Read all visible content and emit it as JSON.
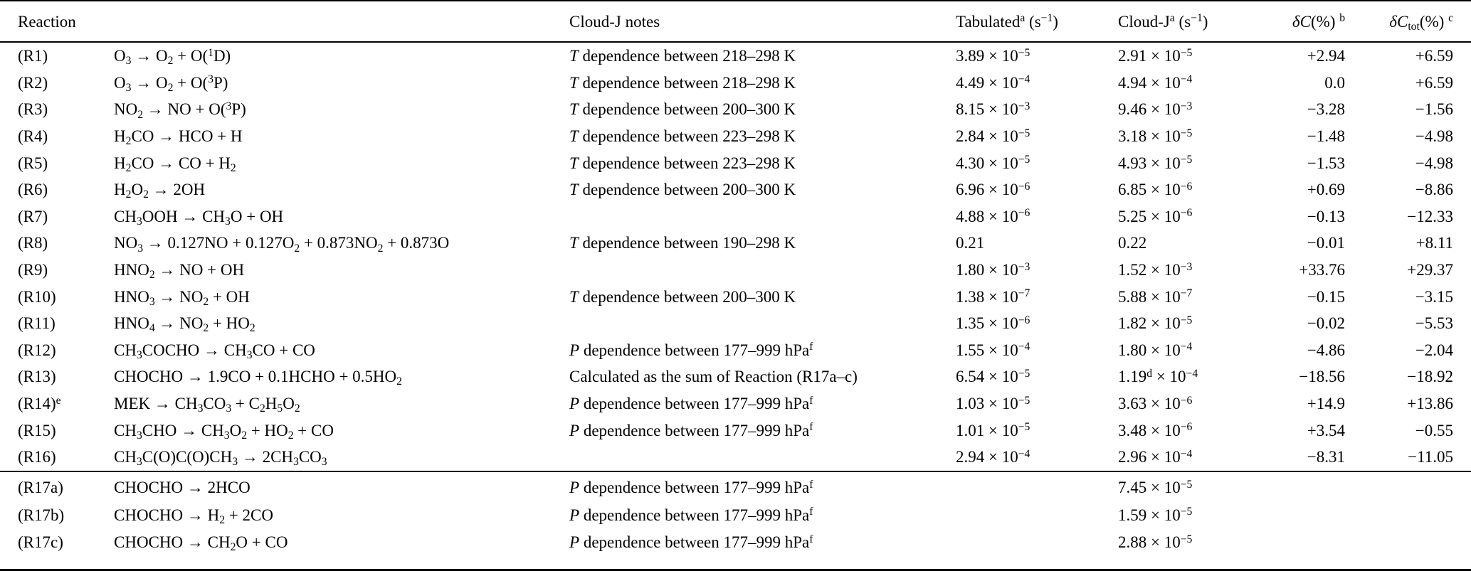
{
  "colors": {
    "background": "#ffffff",
    "text": "#000000",
    "rule": "#000000"
  },
  "table": {
    "headers": {
      "reaction": "Reaction",
      "notes": "Cloud-J notes",
      "tabulated": "Tabulated^a^ (s^−1^)",
      "cloudj": "Cloud-J^a^ (s^−1^)",
      "delta_c": "*δC*(%) ^b^",
      "delta_c_tot": "*δC*~tot~(%) ^c^"
    },
    "rows": [
      {
        "label": "(R1)",
        "formula": "O~3~ -> O~2~ + O(^1^D)",
        "notes": "*T* dependence between 218–298 K",
        "tabulated": "3.89 × 10^−5^",
        "cloudj": "2.91 × 10^−5^",
        "dc": "+2.94",
        "dctot": "+6.59"
      },
      {
        "label": "(R2)",
        "formula": "O~3~ -> O~2~ + O(^3^P)",
        "notes": "*T* dependence between 218–298 K",
        "tabulated": "4.49 × 10^−4^",
        "cloudj": "4.94 × 10^−4^",
        "dc": "0.0",
        "dctot": "+6.59"
      },
      {
        "label": "(R3)",
        "formula": "NO~2~ -> NO + O(^3^P)",
        "notes": "*T* dependence between 200–300 K",
        "tabulated": "8.15 × 10^−3^",
        "cloudj": "9.46 × 10^−3^",
        "dc": "−3.28",
        "dctot": "−1.56"
      },
      {
        "label": "(R4)",
        "formula": "H~2~CO -> HCO + H",
        "notes": "*T* dependence between 223–298 K",
        "tabulated": "2.84 × 10^−5^",
        "cloudj": "3.18 × 10^−5^",
        "dc": "−1.48",
        "dctot": "−4.98"
      },
      {
        "label": "(R5)",
        "formula": "H~2~CO -> CO + H~2~",
        "notes": "*T* dependence between 223–298 K",
        "tabulated": "4.30 × 10^−5^",
        "cloudj": "4.93 × 10^−5^",
        "dc": "−1.53",
        "dctot": "−4.98"
      },
      {
        "label": "(R6)",
        "formula": "H~2~O~2~ -> 2OH",
        "notes": "*T* dependence between 200–300 K",
        "tabulated": "6.96 × 10^−6^",
        "cloudj": "6.85 × 10^−6^",
        "dc": "+0.69",
        "dctot": "−8.86"
      },
      {
        "label": "(R7)",
        "formula": "CH~3~OOH -> CH~3~O + OH",
        "notes": "",
        "tabulated": "4.88 × 10^−6^",
        "cloudj": "5.25 × 10^−6^",
        "dc": "−0.13",
        "dctot": "−12.33"
      },
      {
        "label": "(R8)",
        "formula": "NO~3~ -> 0.127NO + 0.127O~2~ + 0.873NO~2~ + 0.873O",
        "notes": "*T* dependence between 190–298 K",
        "tabulated": "0.21",
        "cloudj": "0.22",
        "dc": "−0.01",
        "dctot": "+8.11"
      },
      {
        "label": "(R9)",
        "formula": "HNO~2~ -> NO + OH",
        "notes": "",
        "tabulated": "1.80 × 10^−3^",
        "cloudj": "1.52 × 10^−3^",
        "dc": "+33.76",
        "dctot": "+29.37"
      },
      {
        "label": "(R10)",
        "formula": "HNO~3~ -> NO~2~ + OH",
        "notes": "*T* dependence between 200–300 K",
        "tabulated": "1.38 × 10^−7^",
        "cloudj": "5.88 × 10^−7^",
        "dc": "−0.15",
        "dctot": "−3.15"
      },
      {
        "label": "(R11)",
        "formula": "HNO~4~ -> NO~2~ + HO~2~",
        "notes": "",
        "tabulated": "1.35 × 10^−6^",
        "cloudj": "1.82 × 10^−5^",
        "dc": "−0.02",
        "dctot": "−5.53"
      },
      {
        "label": "(R12)",
        "formula": "CH~3~COCHO -> CH~3~CO + CO",
        "notes": "*P* dependence between 177–999 hPa^f^",
        "tabulated": "1.55 × 10^−4^",
        "cloudj": "1.80 × 10^−4^",
        "dc": "−4.86",
        "dctot": "−2.04"
      },
      {
        "label": "(R13)",
        "formula": "CHOCHO -> 1.9CO + 0.1HCHO + 0.5HO~2~",
        "notes": "Calculated as the sum of Reaction (R17a–c)",
        "tabulated": "6.54 × 10^−5^",
        "cloudj": "1.19^d^ × 10^−4^",
        "dc": "−18.56",
        "dctot": "−18.92"
      },
      {
        "label": "(R14)^e^",
        "formula": "MEK -> CH~3~CO~3~ + C~2~H~5~O~2~",
        "notes": "*P* dependence between 177–999 hPa^f^",
        "tabulated": "1.03 × 10^−5^",
        "cloudj": "3.63 × 10^−6^",
        "dc": "+14.9",
        "dctot": "+13.86"
      },
      {
        "label": "(R15)",
        "formula": "CH~3~CHO -> CH~3~O~2~ + HO~2~ + CO",
        "notes": "*P* dependence between 177–999 hPa^f^",
        "tabulated": "1.01 × 10^−5^",
        "cloudj": "3.48 × 10^−6^",
        "dc": "+3.54",
        "dctot": "−0.55"
      },
      {
        "label": "(R16)",
        "formula": "CH~3~C(O)C(O)CH~3~ -> 2CH~3~CO~3~",
        "notes": "",
        "tabulated": "2.94 × 10^−4^",
        "cloudj": "2.96 × 10^−4^",
        "dc": "−8.31",
        "dctot": "−11.05"
      }
    ],
    "footnote_rows": [
      {
        "label": "(R17a)",
        "formula": "CHOCHO -> 2HCO",
        "notes": "*P* dependence between 177–999 hPa^f^",
        "tabulated": "",
        "cloudj": "7.45 × 10^−5^",
        "dc": "",
        "dctot": ""
      },
      {
        "label": "(R17b)",
        "formula": "CHOCHO -> H~2~ + 2CO",
        "notes": "*P* dependence between 177–999 hPa^f^",
        "tabulated": "",
        "cloudj": "1.59 × 10^−5^",
        "dc": "",
        "dctot": ""
      },
      {
        "label": "(R17c)",
        "formula": "CHOCHO -> CH~2~O + CO",
        "notes": "*P* dependence between 177–999 hPa^f^",
        "tabulated": "",
        "cloudj": "2.88 × 10^−5^",
        "dc": "",
        "dctot": ""
      }
    ]
  }
}
